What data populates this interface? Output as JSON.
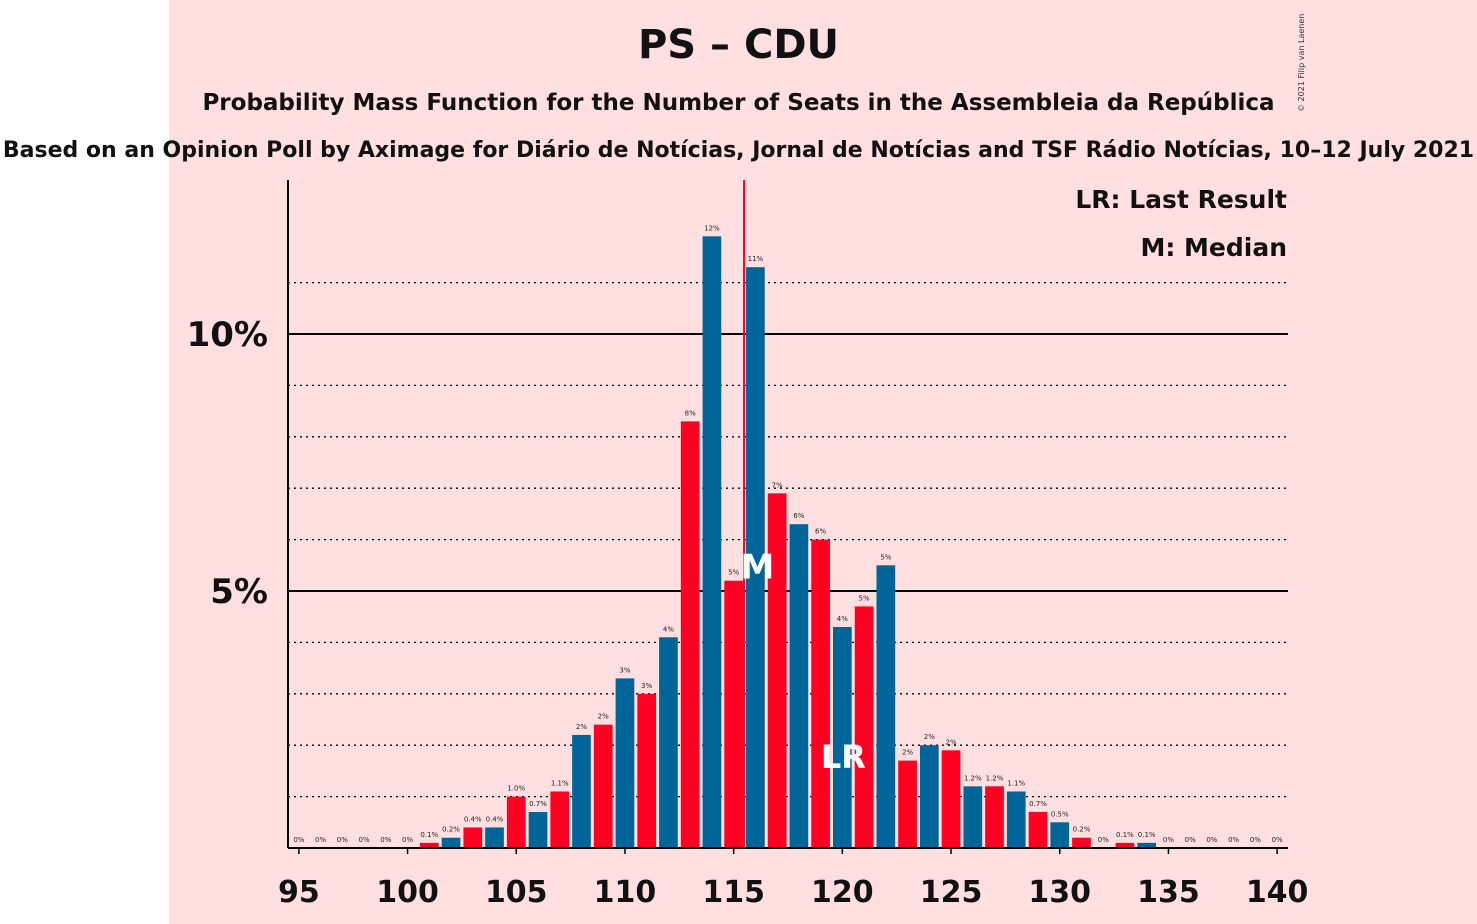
{
  "title": "PS – CDU",
  "subtitle": "Probability Mass Function for the Number of Seats in the Assembleia da República",
  "source": "Based on an Opinion Poll by Aximage for Diário de Notícias, Jornal de Notícias and TSF Rádio Notícias, 10–12 July 2021",
  "copyright": "© 2021 Filip van Laenen",
  "legend": {
    "lr": "LR: Last Result",
    "m": "M: Median"
  },
  "colors": {
    "background": "#ffdfdf",
    "red": "#ff0022",
    "blue": "#006699",
    "median_line": "#ff0022"
  },
  "chart_data": {
    "type": "bar",
    "x_ticks": [
      "95",
      "100",
      "105",
      "110",
      "115",
      "120",
      "125",
      "130",
      "135",
      "140"
    ],
    "y_ticks": [
      "5%",
      "10%"
    ],
    "ylim": [
      0,
      12.9
    ],
    "median": 116,
    "median_marker": "M",
    "last_result": 120,
    "last_result_marker": "LR",
    "x": [
      95,
      96,
      97,
      98,
      99,
      100,
      101,
      102,
      103,
      104,
      105,
      106,
      107,
      108,
      109,
      110,
      111,
      112,
      113,
      114,
      115,
      116,
      117,
      118,
      119,
      120,
      121,
      122,
      123,
      124,
      125,
      126,
      127,
      128,
      129,
      130,
      131,
      132,
      133,
      134,
      135,
      136,
      137,
      138,
      139,
      140
    ],
    "values": [
      0,
      0,
      0,
      0,
      0,
      0,
      0.1,
      0.2,
      0.4,
      0.4,
      1.0,
      0.7,
      1.1,
      2.2,
      2.4,
      3.3,
      3.0,
      4.1,
      8.3,
      11.9,
      5.2,
      11.3,
      6.9,
      6.3,
      6.0,
      4.3,
      4.7,
      5.5,
      1.7,
      2.0,
      1.9,
      1.2,
      1.2,
      1.1,
      0.7,
      0.5,
      0.2,
      0,
      0.1,
      0.1,
      0,
      0,
      0,
      0,
      0,
      0
    ],
    "labels": [
      "0%",
      "0%",
      "0%",
      "0%",
      "0%",
      "0%",
      "0.1%",
      "0.2%",
      "0.4%",
      "0.4%",
      "1.0%",
      "0.7%",
      "1.1%",
      "2%",
      "2%",
      "3%",
      "3%",
      "4%",
      "8%",
      "12%",
      "5%",
      "11%",
      "7%",
      "6%",
      "6%",
      "4%",
      "5%",
      "5%",
      "2%",
      "2%",
      "2%",
      "1.2%",
      "1.2%",
      "1.1%",
      "0.7%",
      "0.5%",
      "0.2%",
      "0%",
      "0.1%",
      "0.1%",
      "0%",
      "0%",
      "0%",
      "0%",
      "0%",
      "0%"
    ]
  }
}
